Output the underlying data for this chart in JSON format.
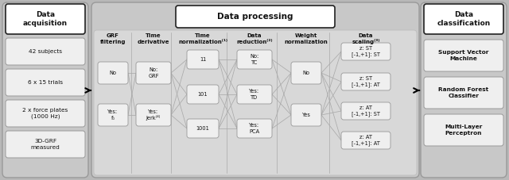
{
  "bg_outer": "#b8b8b8",
  "bg_panel": "#c8c8c8",
  "bg_inner": "#d8d8d8",
  "box_color": "#efefef",
  "box_edge": "#999999",
  "title_box_color": "#ffffff",
  "title_box_edge": "#222222",
  "text_color": "#111111",
  "left_panel": {
    "title": "Data\nacquisition",
    "items": [
      "42 subjects",
      "6 x 15 trials",
      "2 x force plates\n(1000 Hz)",
      "3D-GRF\nmeasured"
    ]
  },
  "right_panel": {
    "title": "Data\nclassification",
    "items": [
      "Support Vector\nMachine",
      "Random Forest\nClassifier",
      "Multi-Layer\nPerceptron"
    ]
  },
  "middle_panel": {
    "title": "Data processing",
    "columns": [
      {
        "header": "GRF\nfiltering",
        "nodes": [
          "No",
          "Yes:\nf₀"
        ]
      },
      {
        "header": "Time\nderivative",
        "nodes": [
          "No:\nGRF",
          "Yes:\nJerk⁽⁴⁾"
        ]
      },
      {
        "header": "Time\nnormalization⁽¹⁾",
        "nodes": [
          "11",
          "101",
          "1001"
        ]
      },
      {
        "header": "Data\nreduction⁽²⁾",
        "nodes": [
          "No:\nTC",
          "Yes:\nTD",
          "Yes:\nPCA"
        ]
      },
      {
        "header": "Weight\nnormalization",
        "nodes": [
          "No",
          "Yes"
        ]
      },
      {
        "header": "Data\nscaling⁽³⁾",
        "nodes": [
          "z: ST\n[-1,+1]: ST",
          "z: ST\n[-1,+1]: AT",
          "z: AT\n[-1,+1]: ST",
          "z: AT\n[-1,+1]: AT"
        ]
      }
    ]
  }
}
